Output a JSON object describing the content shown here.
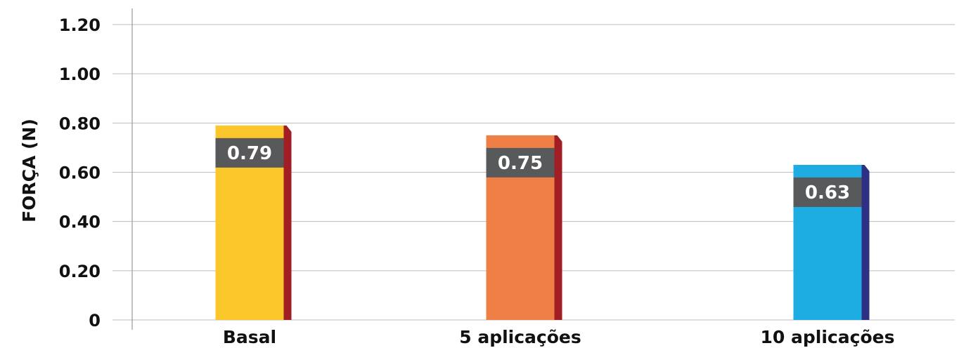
{
  "chart_data": {
    "type": "bar",
    "categories": [
      "Basal",
      "5 aplicações",
      "10 aplicações"
    ],
    "values": [
      0.79,
      0.75,
      0.63
    ],
    "data_labels": [
      "0.79",
      "0.75",
      "0.63"
    ],
    "title": "",
    "xlabel": "",
    "ylabel": "FORÇA (N)",
    "ylim": [
      0,
      1.2
    ],
    "yticks": [
      0,
      0.2,
      0.4,
      0.6,
      0.8,
      1.0,
      1.2
    ],
    "ytick_labels": [
      "0",
      "0.20",
      "0.40",
      "0.60",
      "0.80",
      "1.00",
      "1.20"
    ],
    "grid": true,
    "legend": "none",
    "colors": {
      "bar_fronts": [
        "#fcc72a",
        "#f07f45",
        "#1eade2"
      ],
      "bar_sides": [
        "#a11e24",
        "#a11e24",
        "#2e3084"
      ],
      "label_box": "#58595b",
      "grid": "#bdbdbd",
      "text": "#111111"
    }
  }
}
